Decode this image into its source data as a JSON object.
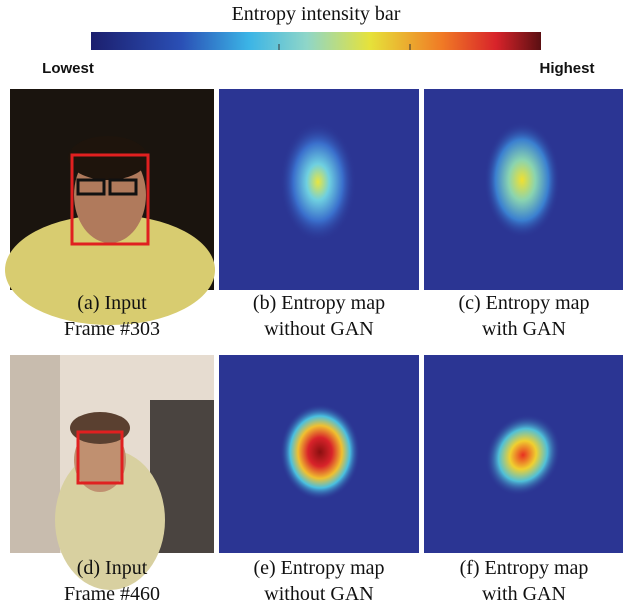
{
  "colorbar": {
    "title": "Entropy intensity bar",
    "low_label": "Lowest",
    "high_label": "Highest"
  },
  "panels": [
    {
      "caption": [
        "(a) Input",
        "Frame #303"
      ]
    },
    {
      "caption": [
        "(b) Entropy map",
        "without GAN"
      ]
    },
    {
      "caption": [
        "(c) Entropy map",
        "with GAN"
      ]
    },
    {
      "caption": [
        "(d) Input",
        "Frame #460"
      ]
    },
    {
      "caption": [
        "(e) Entropy map",
        "without GAN"
      ]
    },
    {
      "caption": [
        "(f) Entropy map",
        "with GAN"
      ]
    }
  ]
}
